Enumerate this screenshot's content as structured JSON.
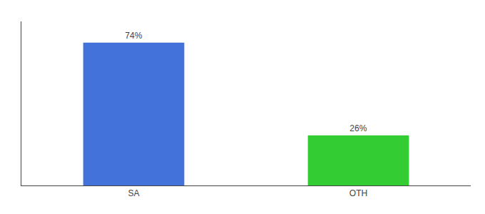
{
  "chart_data": {
    "type": "bar",
    "categories": [
      "SA",
      "OTH"
    ],
    "values": [
      74,
      26
    ],
    "value_labels": [
      "74%",
      "26%"
    ],
    "colors": [
      "#4472db",
      "#33cc33"
    ],
    "ylim": [
      0,
      85
    ],
    "grid": false,
    "data_labels": true,
    "tick_labels": "x"
  }
}
